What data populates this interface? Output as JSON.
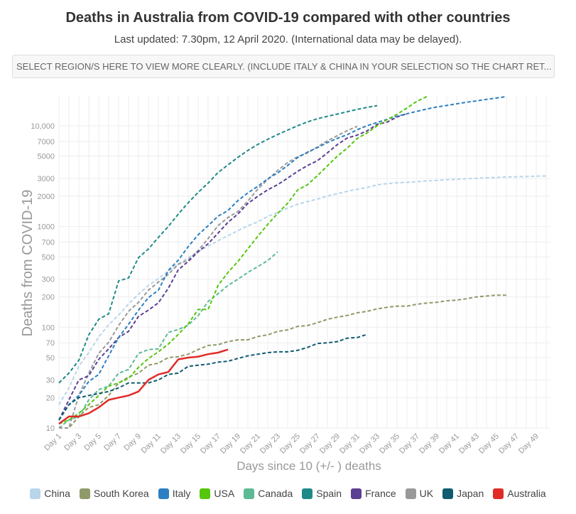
{
  "header": {
    "title": "Deaths in Australia from COVID-19 compared with other countries",
    "subtitle": "Last updated: 7.30pm, 12 April 2020. (International data may be delayed).",
    "region_selector": "SELECT REGION/S HERE TO VIEW MORE CLEARLY. (INCLUDE ITALY  & CHINA IN YOUR SELECTION SO THE CHART RET..."
  },
  "chart_data": {
    "type": "line",
    "xlabel": "Days since 10 (+/- ) deaths",
    "ylabel": "Deaths from COVID-19",
    "yscale": "log",
    "ylim": [
      10,
      20000
    ],
    "xlim": [
      1,
      50
    ],
    "grid": true,
    "legend_position": "bottom",
    "x_tick_labels": [
      "Day 1",
      "Day 3",
      "Day 5",
      "Day 7",
      "Day 9",
      "Day 11",
      "Day 13",
      "Day 15",
      "Day 17",
      "Day 19",
      "Day 21",
      "Day 23",
      "Day 25",
      "Day 27",
      "Day 29",
      "Day 31",
      "Day 33",
      "Day 35",
      "Day 37",
      "Day 39",
      "Day 41",
      "Day 43",
      "Day 45",
      "Day 47",
      "Day 49"
    ],
    "y_ticks": [
      10,
      20,
      30,
      50,
      70,
      100,
      200,
      300,
      500,
      700,
      1000,
      2000,
      3000,
      5000,
      7000,
      10000
    ],
    "y_tick_labels": [
      "10",
      "20",
      "30",
      "50",
      "70",
      "100",
      "200",
      "300",
      "500",
      "700",
      "1000",
      "2000",
      "3000",
      "5000",
      "7000",
      "10,000"
    ],
    "series": [
      {
        "name": "China",
        "color": "#b9d5ea",
        "dashed": true,
        "values": [
          17,
          25,
          41,
          56,
          80,
          106,
          132,
          170,
          213,
          259,
          304,
          361,
          425,
          490,
          563,
          637,
          722,
          811,
          908,
          1016,
          1113,
          1259,
          1380,
          1523,
          1665,
          1770,
          1868,
          2004,
          2118,
          2236,
          2345,
          2442,
          2592,
          2663,
          2715,
          2744,
          2788,
          2835,
          2870,
          2912,
          2943,
          2981,
          3012,
          3042,
          3070,
          3097,
          3119,
          3136,
          3158,
          3173
        ]
      },
      {
        "name": "South Korea",
        "color": "#8f9a6a",
        "dashed": true,
        "values": [
          10,
          10,
          13,
          16,
          17,
          21,
          28,
          32,
          35,
          42,
          44,
          50,
          51,
          54,
          60,
          66,
          67,
          72,
          75,
          75,
          81,
          84,
          91,
          94,
          102,
          104,
          111,
          120,
          126,
          131,
          139,
          144,
          152,
          158,
          162,
          162,
          169,
          174,
          177,
          183,
          186,
          192,
          200,
          204,
          208,
          208
        ]
      },
      {
        "name": "Italy",
        "color": "#2d7fc1",
        "dashed": true,
        "values": [
          12,
          17,
          21,
          29,
          34,
          52,
          79,
          107,
          148,
          197,
          233,
          366,
          463,
          631,
          827,
          1016,
          1266,
          1441,
          1809,
          2158,
          2503,
          2978,
          3405,
          4032,
          4825,
          5476,
          6077,
          6820,
          7503,
          8165,
          9134,
          10023,
          10779,
          11591,
          12428,
          13155,
          13915,
          14681,
          15362,
          15887,
          16523,
          17127,
          17669,
          18279,
          18849,
          19468
        ]
      },
      {
        "name": "USA",
        "color": "#55c60c",
        "dashed": true,
        "values": [
          11,
          12,
          14,
          17,
          21,
          26,
          28,
          31,
          40,
          49,
          57,
          68,
          85,
          108,
          150,
          150,
          260,
          350,
          450,
          600,
          800,
          1050,
          1350,
          1700,
          2300,
          2600,
          3200,
          4000,
          5000,
          6000,
          7500,
          8500,
          10000,
          11500,
          13000,
          15000,
          17500,
          19500
        ]
      },
      {
        "name": "Canada",
        "color": "#5dba95",
        "dashed": true,
        "values": [
          10,
          12,
          13,
          19,
          24,
          26,
          35,
          38,
          55,
          60,
          61,
          89,
          95,
          105,
          130,
          180,
          215,
          260,
          300,
          350,
          400,
          460,
          560
        ]
      },
      {
        "name": "Spain",
        "color": "#1e8a88",
        "dashed": true,
        "values": [
          28,
          35,
          47,
          84,
          120,
          136,
          288,
          309,
          491,
          598,
          780,
          1002,
          1326,
          1720,
          2182,
          2696,
          3434,
          4089,
          4858,
          5690,
          6528,
          7340,
          8189,
          9053,
          10003,
          10935,
          11744,
          12418,
          13055,
          13798,
          14555,
          15238,
          15843
        ]
      },
      {
        "name": "France",
        "color": "#5b3f93",
        "dashed": true,
        "values": [
          12,
          19,
          30,
          33,
          48,
          61,
          79,
          91,
          128,
          148,
          175,
          244,
          372,
          450,
          562,
          674,
          860,
          1100,
          1331,
          1696,
          1995,
          2314,
          2606,
          3024,
          3523,
          4032,
          4503,
          5387,
          6507,
          7560,
          8078,
          8911,
          10328,
          10869,
          12210,
          13197
        ]
      },
      {
        "name": "UK",
        "color": "#999999",
        "dashed": true,
        "values": [
          10,
          10,
          21,
          35,
          55,
          71,
          104,
          144,
          177,
          233,
          281,
          335,
          422,
          465,
          578,
          759,
          1019,
          1228,
          1408,
          1789,
          2352,
          2921,
          3605,
          4313,
          4934,
          5373,
          6159,
          7097,
          7978,
          8958,
          9875
        ]
      },
      {
        "name": "Japan",
        "color": "#0f5b6f",
        "dashed": true,
        "values": [
          12,
          17,
          20,
          21,
          22,
          23,
          25,
          28,
          28,
          28,
          30,
          34,
          35,
          41,
          42,
          43,
          45,
          46,
          49,
          52,
          54,
          56,
          57,
          57,
          59,
          63,
          69,
          70,
          72,
          78,
          79,
          85
        ]
      },
      {
        "name": "Australia",
        "color": "#e02b27",
        "dashed": false,
        "values": [
          11,
          13,
          13,
          14,
          16,
          19,
          20,
          21,
          23,
          30,
          34,
          36,
          48,
          50,
          51,
          54,
          56,
          60
        ]
      }
    ]
  }
}
